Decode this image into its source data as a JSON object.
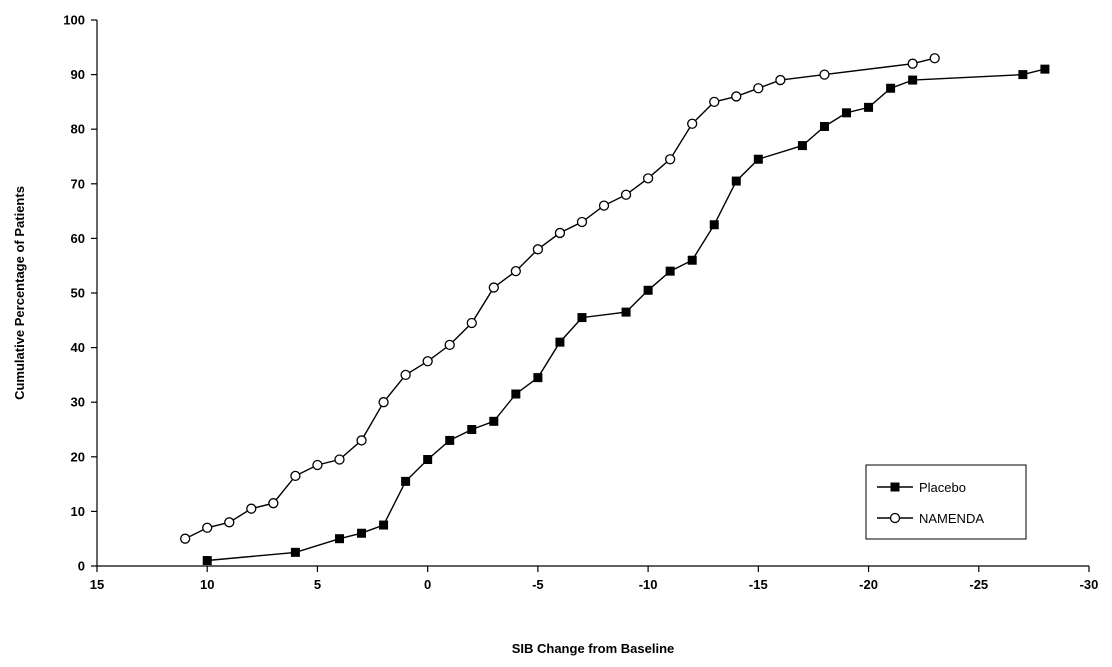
{
  "chart_data": {
    "type": "line",
    "title": "",
    "xlabel": "SIB Change from Baseline",
    "ylabel": "Cumulative Percentage of Patients",
    "xlim": [
      15,
      -30
    ],
    "ylim": [
      0,
      100
    ],
    "x_reversed": true,
    "x_ticks": [
      15,
      10,
      5,
      0,
      -5,
      -10,
      -15,
      -20,
      -25,
      -30
    ],
    "x_tick_labels": [
      "15",
      "10",
      "5",
      "0",
      "-5",
      "-10",
      "-15",
      "-20",
      "-25",
      "-30"
    ],
    "y_ticks": [
      0,
      10,
      20,
      30,
      40,
      50,
      60,
      70,
      80,
      90,
      100
    ],
    "y_tick_labels": [
      "0",
      "10",
      "20",
      "30",
      "40",
      "50",
      "60",
      "70",
      "80",
      "90",
      "100"
    ],
    "grid": false,
    "legend_position": "bottom-right",
    "series": [
      {
        "name": "Placebo",
        "marker": "filled-square",
        "color": "#000000",
        "x": [
          10,
          6,
          4,
          3,
          2,
          1,
          0,
          -1,
          -2,
          -3,
          -4,
          -5,
          -6,
          -7,
          -9,
          -10,
          -11,
          -12,
          -13,
          -14,
          -15,
          -17,
          -18,
          -19,
          -20,
          -21,
          -22,
          -27,
          -28
        ],
        "y": [
          1,
          2.5,
          5,
          6,
          7.5,
          15.5,
          19.5,
          23,
          25,
          26.5,
          31.5,
          34.5,
          41,
          45.5,
          46.5,
          50.5,
          54,
          56,
          62.5,
          70.5,
          74.5,
          77,
          80.5,
          83,
          84,
          87.5,
          89,
          90,
          91
        ]
      },
      {
        "name": "NAMENDA",
        "marker": "open-circle",
        "color": "#000000",
        "x": [
          11,
          10,
          9,
          8,
          7,
          6,
          5,
          4,
          3,
          2,
          1,
          0,
          -1,
          -2,
          -3,
          -4,
          -5,
          -6,
          -7,
          -8,
          -9,
          -10,
          -11,
          -12,
          -13,
          -14,
          -15,
          -16,
          -18,
          -22,
          -23
        ],
        "y": [
          5,
          7,
          8,
          10.5,
          11.5,
          16.5,
          18.5,
          19.5,
          23,
          30,
          35,
          37.5,
          40.5,
          44.5,
          51,
          54,
          58,
          61,
          63,
          66,
          68,
          71,
          74.5,
          81,
          85,
          86,
          87.5,
          89,
          90,
          92,
          93
        ]
      }
    ]
  }
}
